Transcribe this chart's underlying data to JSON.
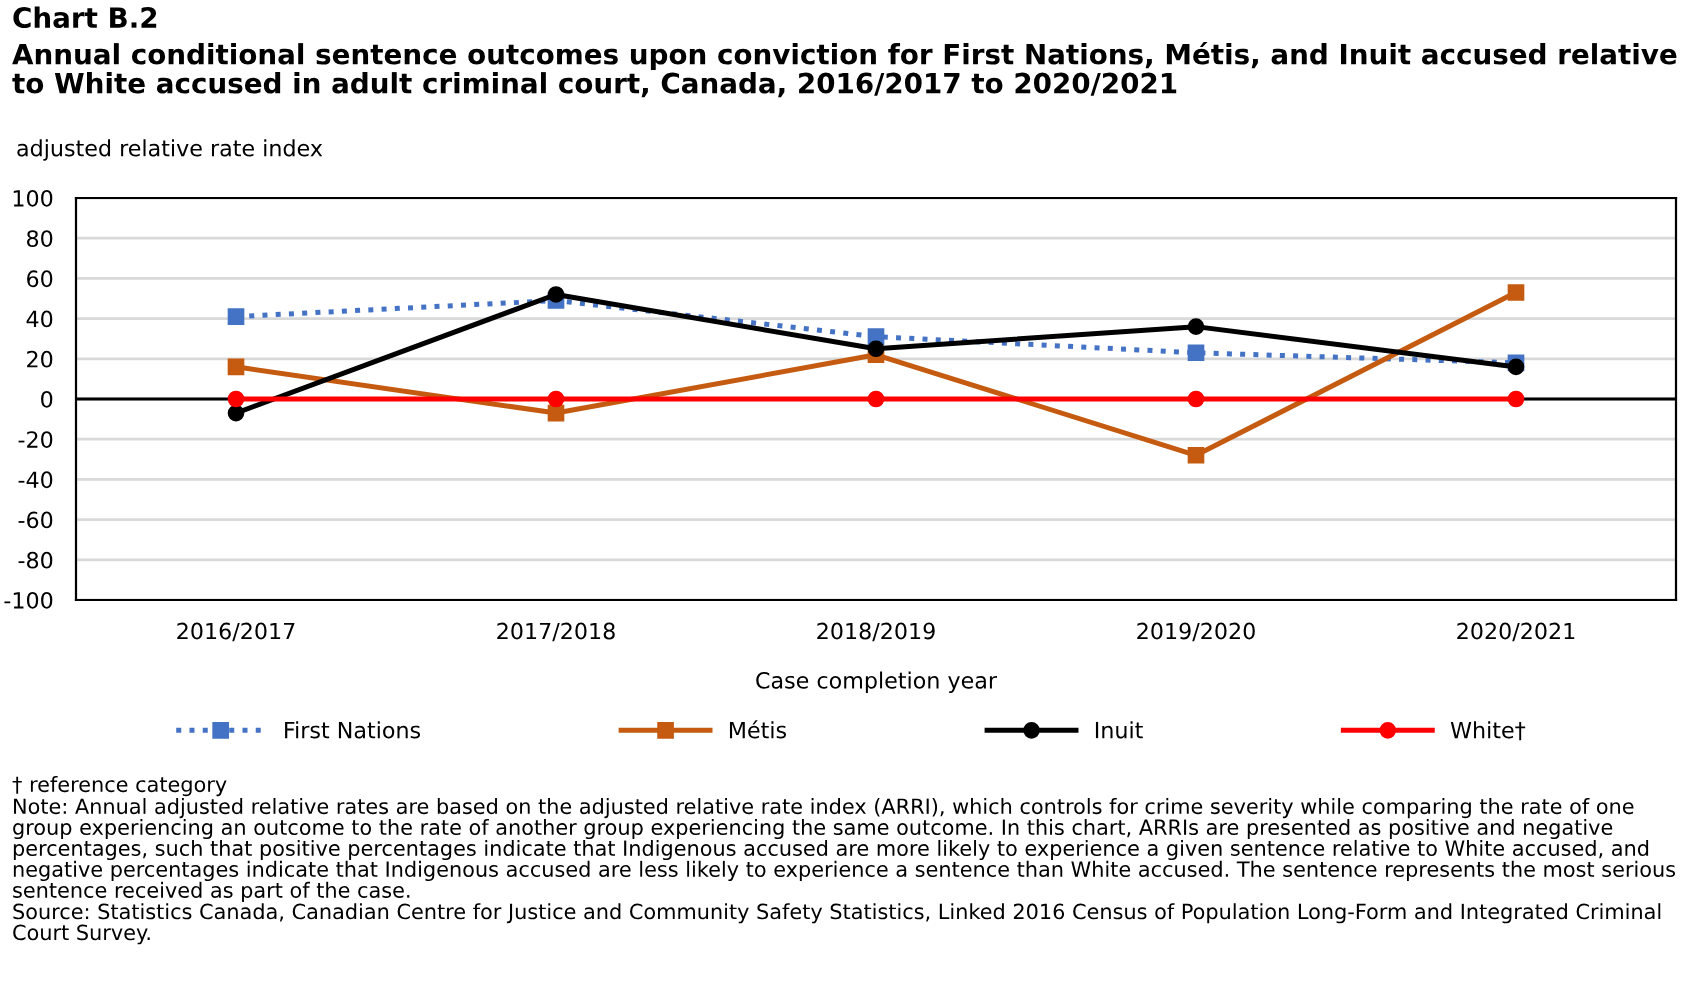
{
  "chart_data": {
    "type": "line",
    "title": "Chart B.2",
    "subtitle": "Annual conditional sentence outcomes upon conviction for First Nations, Métis, and Inuit accused relative to White accused in adult criminal court, Canada, 2016/2017 to 2020/2021",
    "ylabel": "adjusted relative rate index",
    "xlabel": "Case completion year",
    "categories": [
      "2016/2017",
      "2017/2018",
      "2018/2019",
      "2019/2020",
      "2020/2021"
    ],
    "series": [
      {
        "name": "First Nations",
        "color": "#4472c4",
        "values": [
          41,
          49,
          31,
          23,
          18
        ],
        "marker": "square",
        "line_style": "dotted"
      },
      {
        "name": "Métis",
        "color": "#c55a11",
        "values": [
          16,
          -7,
          22,
          -28,
          53
        ],
        "marker": "square",
        "line_style": "solid"
      },
      {
        "name": "Inuit",
        "color": "#000000",
        "values": [
          -7,
          52,
          25,
          36,
          16
        ],
        "marker": "circle",
        "line_style": "solid"
      },
      {
        "name": "White†",
        "color": "#ff0000",
        "values": [
          0,
          0,
          0,
          0,
          0
        ],
        "marker": "circle",
        "line_style": "solid"
      }
    ],
    "ylim": [
      -100,
      100
    ],
    "yticks": [
      -100,
      -80,
      -60,
      -40,
      -20,
      0,
      20,
      40,
      60,
      80,
      100
    ],
    "grid": "y",
    "legend": "bottom",
    "ref_lines": [
      {
        "axis": "y",
        "value": 0,
        "color": "#000000"
      }
    ],
    "annotations": [
      "† reference category",
      "Note: Annual adjusted relative rates are based on the adjusted relative rate index (ARRI), which controls for crime severity while comparing the rate of one group experiencing an outcome to the rate of another group experiencing the same outcome. In this chart, ARRIs are presented as positive and negative percentages, such that positive percentages indicate that Indigenous accused are more likely to experience a given sentence relative to White accused, and negative percentages indicate that Indigenous accused are less likely to experience a sentence than White accused. The sentence represents the most serious sentence received as part of the case.",
      "Source: Statistics Canada, Canadian Centre for Justice and Community Safety Statistics, Linked 2016 Census of Population Long-Form and Integrated Criminal Court Survey."
    ]
  }
}
